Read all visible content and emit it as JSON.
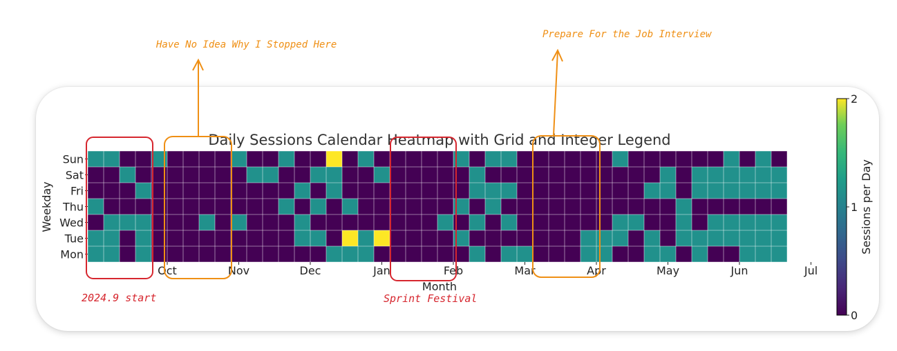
{
  "chart_data": {
    "type": "heatmap",
    "title": "Daily Sessions Calendar Heatmap with Grid and Integer Legend",
    "xlabel": "Month",
    "ylabel": "Weekday",
    "rows": [
      "Sun",
      "Sat",
      "Fri",
      "Thu",
      "Wed",
      "Tue",
      "Mon"
    ],
    "month_ticks": [
      {
        "label": "Oct",
        "week": 5
      },
      {
        "label": "Nov",
        "week": 9.5
      },
      {
        "label": "Dec",
        "week": 14
      },
      {
        "label": "Jan",
        "week": 18.5
      },
      {
        "label": "Feb",
        "week": 23
      },
      {
        "label": "Mar",
        "week": 27.5
      },
      {
        "label": "Apr",
        "week": 32
      },
      {
        "label": "May",
        "week": 36.5
      },
      {
        "label": "Jun",
        "week": 41
      },
      {
        "label": "Jul",
        "week": 45.5
      }
    ],
    "colorbar": {
      "label": "Sessions per Day",
      "min": 0,
      "max": 2,
      "ticks": [
        "0",
        "1",
        "2"
      ]
    },
    "colors": {
      "0": "#440154",
      "1": "#21918c",
      "2": "#fde725"
    },
    "grid": true,
    "weeks": 44,
    "values": [
      [
        1,
        1,
        0,
        0,
        1,
        0,
        0,
        0,
        0,
        1,
        0,
        0,
        1,
        0,
        0,
        2,
        0,
        1,
        0,
        0,
        0,
        0,
        0,
        1,
        0,
        1,
        1,
        0,
        0,
        0,
        0,
        0,
        0,
        1,
        0,
        0,
        0,
        0,
        0,
        0,
        1,
        0,
        1,
        0
      ],
      [
        0,
        0,
        1,
        0,
        0,
        0,
        0,
        0,
        0,
        0,
        1,
        1,
        0,
        0,
        1,
        1,
        0,
        0,
        1,
        0,
        0,
        0,
        0,
        0,
        1,
        0,
        0,
        0,
        0,
        0,
        0,
        0,
        0,
        0,
        0,
        0,
        1,
        0,
        1,
        1,
        1,
        1,
        1,
        1
      ],
      [
        0,
        0,
        0,
        1,
        0,
        0,
        0,
        0,
        0,
        0,
        0,
        0,
        0,
        1,
        0,
        1,
        0,
        0,
        0,
        0,
        0,
        0,
        0,
        0,
        1,
        1,
        1,
        0,
        0,
        0,
        0,
        0,
        0,
        0,
        0,
        1,
        1,
        0,
        1,
        1,
        1,
        1,
        1,
        1
      ],
      [
        1,
        0,
        0,
        0,
        0,
        0,
        0,
        0,
        0,
        0,
        0,
        0,
        1,
        0,
        1,
        0,
        1,
        0,
        0,
        0,
        0,
        0,
        0,
        1,
        0,
        1,
        0,
        0,
        0,
        0,
        0,
        0,
        0,
        0,
        0,
        0,
        0,
        1,
        0,
        0,
        0,
        0,
        0,
        0
      ],
      [
        0,
        1,
        1,
        1,
        0,
        0,
        0,
        1,
        0,
        1,
        0,
        0,
        0,
        1,
        0,
        0,
        0,
        0,
        0,
        0,
        0,
        0,
        1,
        0,
        1,
        0,
        1,
        0,
        0,
        0,
        0,
        0,
        0,
        1,
        1,
        0,
        0,
        1,
        0,
        1,
        1,
        1,
        1,
        1
      ],
      [
        1,
        1,
        0,
        1,
        0,
        0,
        0,
        0,
        0,
        0,
        0,
        0,
        0,
        1,
        1,
        0,
        2,
        1,
        2,
        0,
        0,
        0,
        0,
        1,
        0,
        0,
        0,
        0,
        0,
        0,
        0,
        1,
        1,
        1,
        0,
        1,
        0,
        1,
        1,
        1,
        1,
        1,
        1,
        1
      ],
      [
        1,
        1,
        0,
        1,
        0,
        0,
        0,
        0,
        0,
        0,
        0,
        0,
        0,
        0,
        0,
        1,
        1,
        1,
        0,
        0,
        0,
        0,
        0,
        0,
        1,
        0,
        1,
        1,
        0,
        0,
        0,
        1,
        1,
        0,
        0,
        1,
        1,
        0,
        1,
        0,
        0,
        1,
        1,
        1
      ]
    ]
  },
  "annotations": {
    "top_left_note": "Have No Idea Why I Stopped Here",
    "top_right_note": "Prepare For the Job Interview",
    "start_note": "2024.9 start",
    "festival_note": "Sprint Festival"
  }
}
